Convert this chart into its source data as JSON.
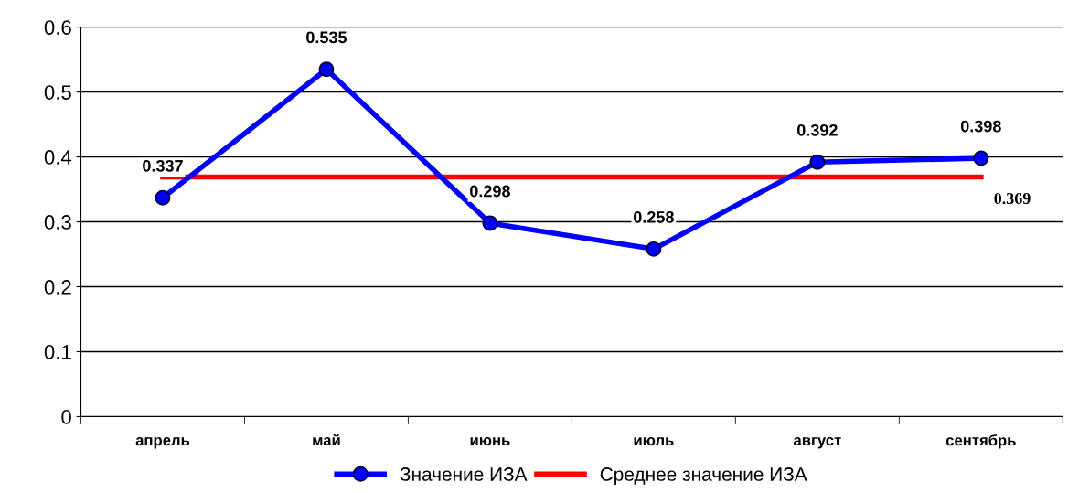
{
  "chart_data": {
    "type": "line",
    "categories": [
      "апрель",
      "май",
      "июнь",
      "июль",
      "август",
      "сентябрь"
    ],
    "series": [
      {
        "name": "Значение ИЗА",
        "color": "#0000ff",
        "values": [
          0.337,
          0.535,
          0.298,
          0.258,
          0.392,
          0.398
        ],
        "value_labels": [
          "0.337",
          "0.535",
          "0.298",
          "0.258",
          "0.392",
          "0.398"
        ],
        "marker": "circle"
      },
      {
        "name": "Среднее значение ИЗА",
        "color": "#ff0000",
        "values": [
          0.369,
          0.369,
          0.369,
          0.369,
          0.369,
          0.369
        ],
        "value_labels": [
          null,
          null,
          null,
          null,
          null,
          "0.369"
        ],
        "marker": "none"
      }
    ],
    "ylim": [
      0,
      0.6
    ],
    "yticks": [
      0,
      0.1,
      0.2,
      0.3,
      0.4,
      0.5,
      0.6
    ],
    "grid": "y",
    "legend": "bottom",
    "line_style": "solid"
  }
}
